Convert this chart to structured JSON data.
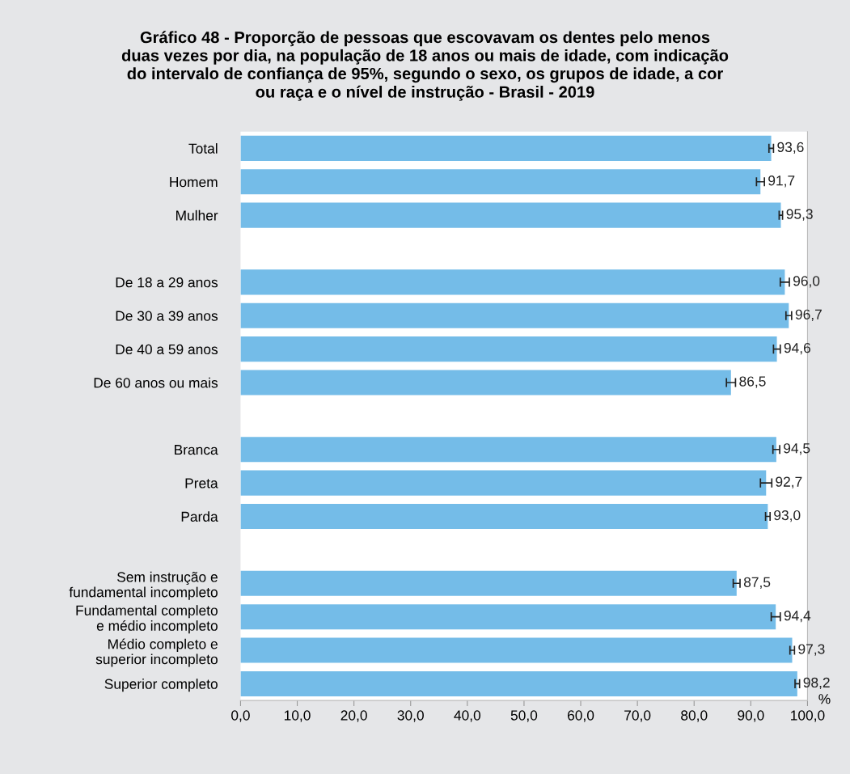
{
  "chart_data": {
    "type": "bar",
    "orientation": "horizontal",
    "title": "Gráfico 48 - Proporção de pessoas que escovavam os dentes pelo menos\nduas vezes por dia, na população de 18 anos ou mais de idade, com indicação\ndo intervalo de confiança de 95%, segundo o sexo, os grupos de idade, a cor\nou raça e o nível de instrução - Brasil - 2019",
    "xlabel": "%",
    "categories": [
      "Total",
      "Homem",
      "Mulher",
      null,
      "De 18 a 29 anos",
      "De 30 a 39 anos",
      "De 40 a 59 anos",
      "De 60 anos ou mais",
      null,
      "Branca",
      "Preta",
      "Parda",
      null,
      "Sem instrução e\nfundamental incompleto",
      "Fundamental completo\ne médio incompleto",
      "Médio completo e\nsuperior incompleto",
      "Superior completo"
    ],
    "values": [
      93.6,
      91.7,
      95.3,
      null,
      96.0,
      96.7,
      94.6,
      86.5,
      null,
      94.5,
      92.7,
      93.0,
      null,
      87.5,
      94.4,
      97.3,
      98.2
    ],
    "errors": [
      0.4,
      0.7,
      0.3,
      null,
      0.8,
      0.5,
      0.6,
      0.8,
      null,
      0.6,
      1.0,
      0.4,
      null,
      0.6,
      0.8,
      0.4,
      0.4
    ],
    "value_labels": [
      "93,6",
      "91,7",
      "95,3",
      null,
      "96,0",
      "96,7",
      "94,6",
      "86,5",
      null,
      "94,5",
      "92,7",
      "93,0",
      null,
      "87,5",
      "94,4",
      "97,3",
      "98,2"
    ],
    "color": "#74bce8",
    "xlim": [
      0,
      100
    ],
    "xticks": [
      {
        "value": 0,
        "label": "0,0"
      },
      {
        "value": 10,
        "label": "10,0"
      },
      {
        "value": 20,
        "label": "20,0"
      },
      {
        "value": 30,
        "label": "30,0"
      },
      {
        "value": 40,
        "label": "40,0"
      },
      {
        "value": 50,
        "label": "50,0"
      },
      {
        "value": 60,
        "label": "60,0"
      },
      {
        "value": 70,
        "label": "70,0"
      },
      {
        "value": 80,
        "label": "80,0"
      },
      {
        "value": 90,
        "label": "90,0"
      },
      {
        "value": 100,
        "label": "100,0"
      }
    ],
    "grid": false
  }
}
